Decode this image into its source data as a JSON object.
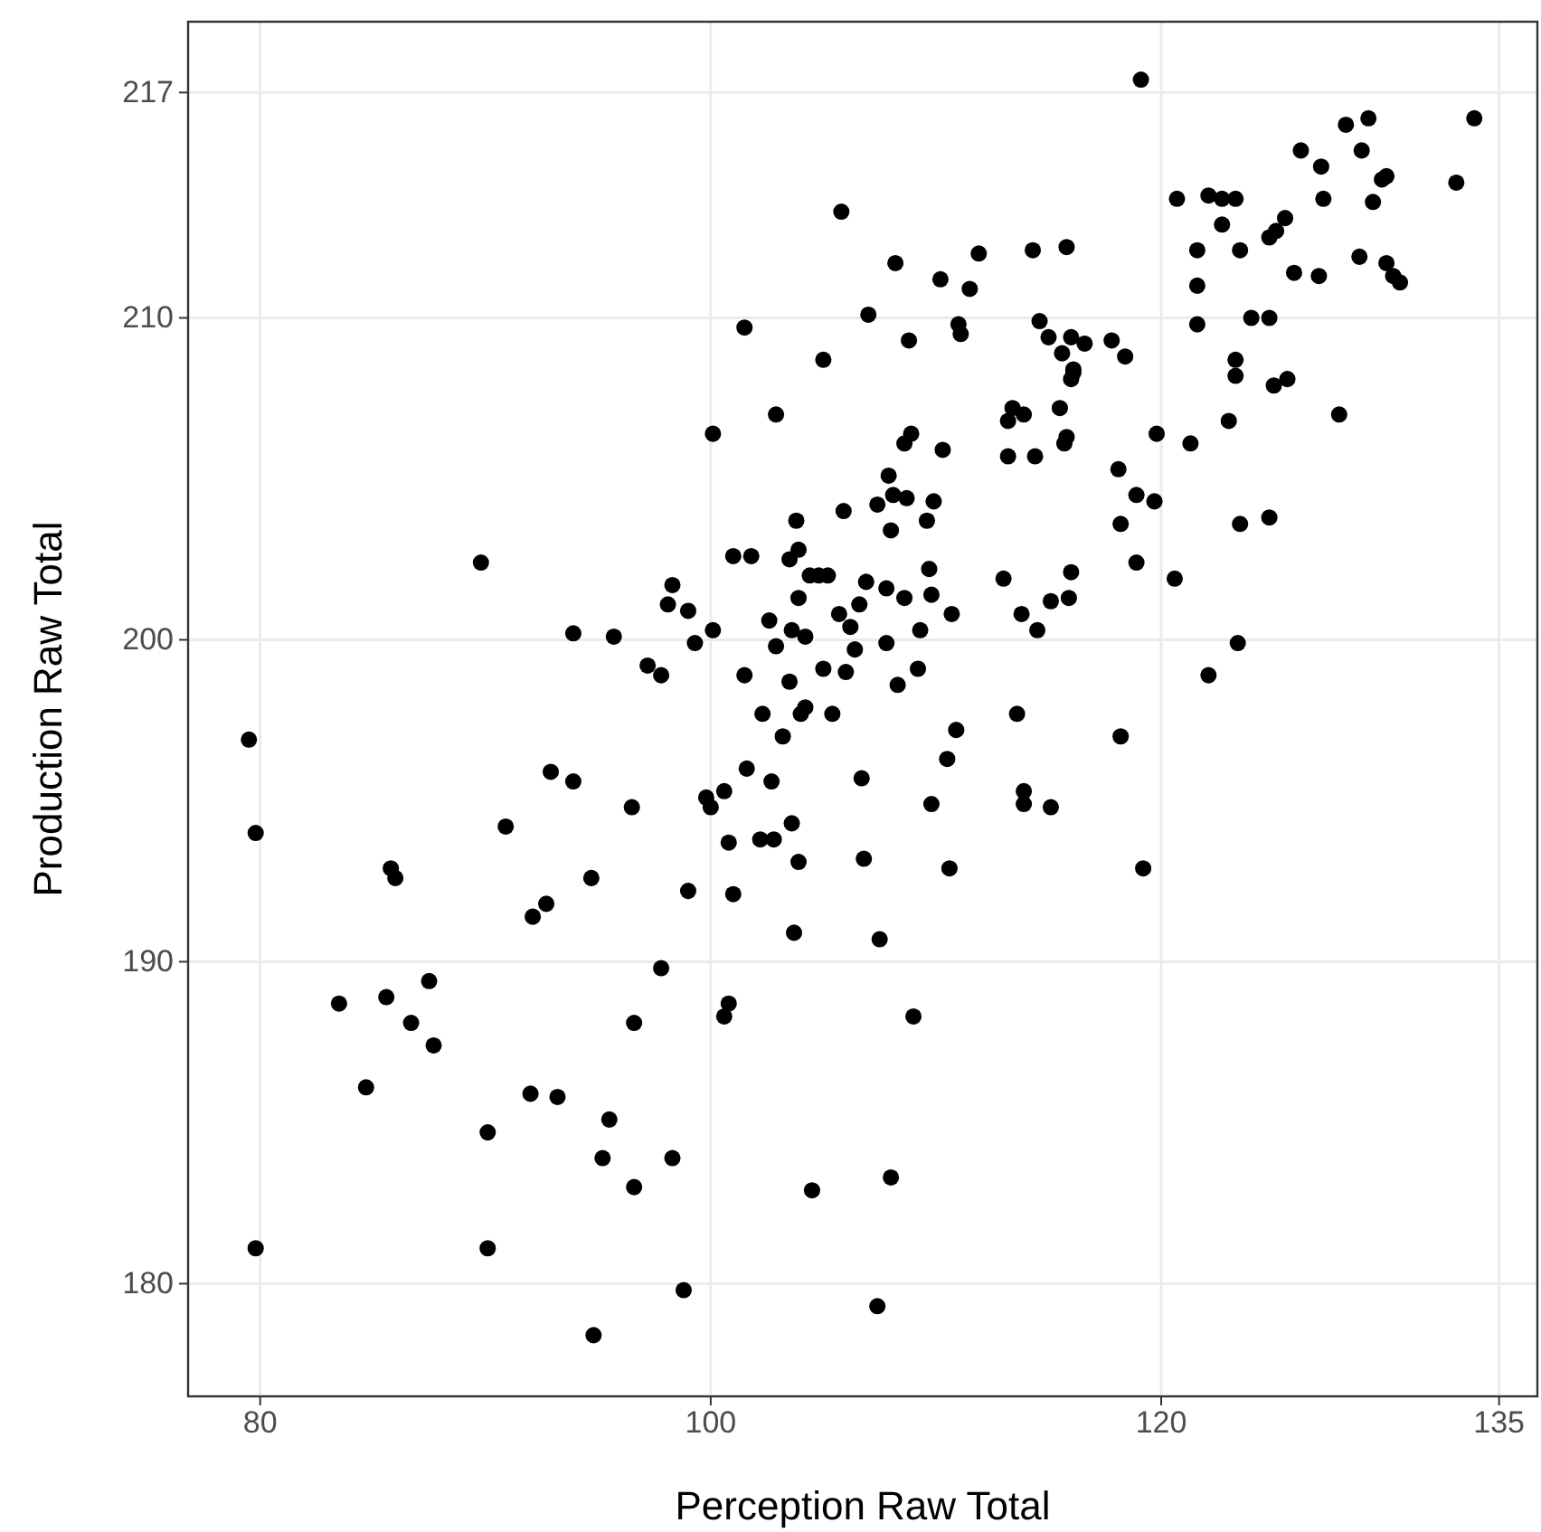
{
  "chart_data": {
    "type": "scatter",
    "xlabel": "Perception Raw Total",
    "ylabel": "Production Raw Total",
    "xlim": [
      76.8,
      136.7
    ],
    "ylim": [
      176.5,
      219.2
    ],
    "xticks": [
      80,
      100,
      120,
      135
    ],
    "yticks": [
      180,
      190,
      200,
      210,
      217
    ],
    "grid": true,
    "marker": "circle",
    "series": [
      {
        "color": "#000000",
        "x": [
          79.5,
          79.8,
          79.8,
          83.5,
          84.7,
          85.6,
          85.8,
          86.0,
          86.7,
          87.5,
          87.7,
          89.8,
          90.1,
          90.1,
          90.9,
          92.0,
          92.1,
          92.7,
          92.9,
          93.2,
          93.9,
          93.9,
          94.7,
          94.8,
          95.2,
          95.5,
          95.7,
          96.5,
          96.6,
          96.6,
          97.2,
          97.8,
          97.8,
          98.1,
          98.3,
          98.3,
          98.8,
          99.0,
          99.0,
          99.3,
          99.8,
          100.0,
          100.1,
          100.1,
          100.6,
          100.6,
          100.8,
          100.8,
          101.0,
          101.0,
          101.5,
          101.5,
          101.6,
          101.8,
          102.2,
          102.3,
          102.6,
          102.7,
          102.8,
          102.9,
          102.9,
          103.2,
          103.5,
          103.5,
          103.6,
          103.6,
          103.7,
          103.8,
          103.9,
          103.9,
          103.9,
          104.0,
          104.2,
          104.2,
          104.4,
          104.5,
          104.8,
          105.0,
          105.0,
          105.2,
          105.4,
          105.7,
          105.8,
          105.9,
          106.0,
          106.2,
          106.4,
          106.6,
          106.7,
          106.8,
          106.9,
          107.0,
          107.4,
          107.4,
          107.5,
          107.8,
          107.8,
          107.9,
          108.0,
          108.0,
          108.1,
          108.2,
          108.3,
          108.6,
          108.6,
          108.7,
          108.8,
          108.9,
          109.0,
          109.2,
          109.3,
          109.6,
          109.7,
          109.8,
          109.8,
          109.9,
          110.2,
          110.3,
          110.5,
          110.6,
          110.7,
          110.9,
          111.0,
          111.1,
          111.5,
          111.9,
          113.0,
          113.2,
          113.2,
          113.4,
          113.6,
          113.8,
          113.9,
          113.9,
          113.9,
          114.3,
          114.4,
          114.5,
          114.6,
          115.0,
          115.1,
          115.1,
          115.5,
          115.6,
          115.7,
          115.8,
          115.8,
          115.9,
          116.0,
          116.0,
          116.0,
          116.1,
          116.1,
          116.6,
          117.8,
          118.1,
          118.2,
          118.2,
          118.4,
          118.9,
          118.9,
          119.1,
          119.2,
          119.7,
          119.8,
          120.6,
          120.7,
          121.3,
          121.6,
          121.6,
          121.6,
          122.1,
          122.1,
          122.7,
          122.7,
          123.0,
          123.3,
          123.3,
          123.3,
          123.4,
          123.5,
          123.5,
          124.0,
          124.8,
          124.8,
          124.8,
          125.0,
          125.1,
          125.5,
          125.6,
          125.9,
          126.2,
          127.0,
          127.1,
          127.2,
          127.9,
          128.2,
          128.8,
          128.9,
          129.2,
          129.4,
          129.8,
          130.0,
          130.0,
          130.3,
          130.6,
          133.1,
          133.9
        ],
        "values": [
          196.9,
          194.0,
          181.1,
          188.7,
          186.1,
          188.9,
          192.9,
          192.6,
          188.1,
          189.4,
          187.4,
          202.4,
          184.7,
          181.1,
          194.2,
          185.9,
          191.4,
          191.8,
          195.9,
          185.8,
          195.6,
          200.2,
          192.6,
          178.4,
          183.9,
          185.1,
          200.1,
          194.8,
          188.1,
          183.0,
          199.2,
          198.9,
          189.8,
          201.1,
          201.7,
          183.9,
          179.8,
          200.9,
          192.2,
          199.9,
          195.1,
          194.8,
          200.3,
          206.4,
          195.3,
          188.3,
          188.7,
          193.7,
          202.6,
          192.1,
          209.7,
          198.9,
          196.0,
          202.6,
          193.8,
          197.7,
          200.6,
          195.6,
          193.8,
          207.0,
          199.8,
          197.0,
          198.7,
          202.5,
          200.3,
          194.3,
          190.9,
          203.7,
          193.1,
          202.8,
          201.3,
          197.7,
          197.9,
          200.1,
          202.0,
          182.9,
          202.0,
          199.1,
          208.7,
          202.0,
          197.7,
          200.8,
          213.3,
          204.0,
          199.0,
          200.4,
          199.7,
          201.1,
          195.7,
          193.2,
          201.8,
          210.1,
          179.3,
          204.2,
          190.7,
          199.9,
          201.6,
          205.1,
          203.4,
          183.3,
          204.5,
          211.7,
          198.6,
          201.3,
          206.1,
          204.4,
          209.3,
          206.4,
          188.3,
          199.1,
          200.3,
          203.7,
          202.2,
          201.4,
          194.9,
          204.3,
          211.2,
          205.9,
          196.3,
          192.9,
          200.8,
          197.2,
          209.8,
          209.5,
          210.9,
          212.0,
          201.9,
          206.8,
          205.7,
          207.2,
          197.7,
          200.8,
          195.3,
          194.9,
          207.0,
          212.1,
          205.7,
          200.3,
          209.9,
          209.4,
          194.8,
          201.2,
          207.2,
          208.9,
          206.1,
          212.2,
          206.3,
          201.3,
          202.1,
          208.1,
          209.4,
          208.4,
          208.3,
          209.2,
          209.3,
          205.3,
          197.0,
          203.6,
          208.8,
          204.5,
          202.4,
          217.4,
          192.9,
          204.3,
          206.4,
          201.9,
          213.7,
          206.1,
          211.0,
          209.8,
          212.1,
          213.8,
          198.9,
          213.7,
          212.9,
          206.8,
          208.2,
          208.7,
          213.7,
          199.9,
          203.6,
          212.1,
          210.0,
          203.8,
          212.5,
          210.0,
          207.9,
          212.7,
          213.1,
          208.1,
          211.4,
          215.2,
          211.3,
          214.7,
          213.7,
          207.0,
          216.0,
          211.9,
          215.2,
          216.2,
          213.6,
          214.3,
          214.4,
          211.7,
          211.3,
          211.1,
          214.2,
          216.2
        ]
      }
    ]
  }
}
